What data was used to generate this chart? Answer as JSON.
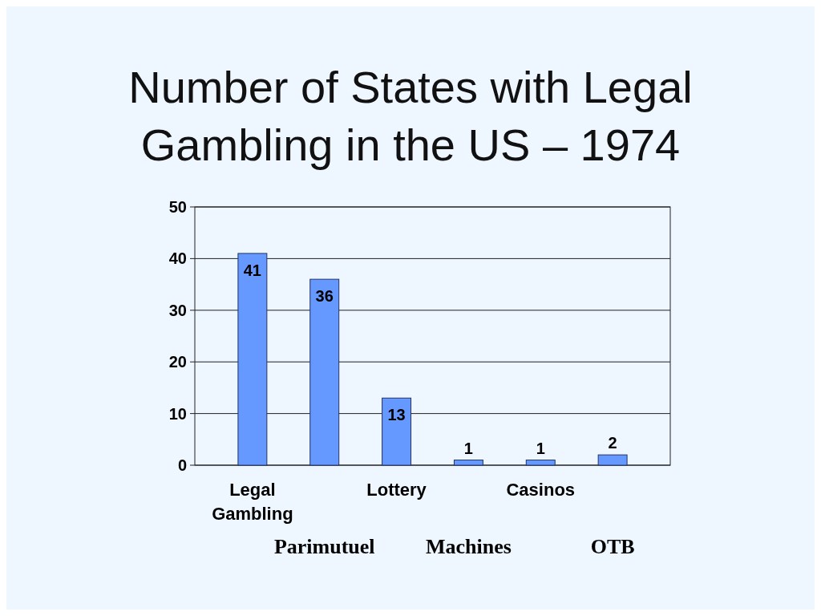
{
  "chart_data": {
    "type": "bar",
    "title": "Number of States with Legal Gambling in the US – 1974",
    "categories": [
      "Legal Gambling",
      "Parimutuel",
      "Lottery",
      "Machines",
      "Casinos",
      "OTB"
    ],
    "values": [
      41,
      36,
      13,
      1,
      1,
      2
    ],
    "color": "#6699ff",
    "ylim": [
      0,
      50
    ],
    "yticks": [
      0,
      10,
      20,
      30,
      40,
      50
    ],
    "grid": "y",
    "data_labels": true
  }
}
